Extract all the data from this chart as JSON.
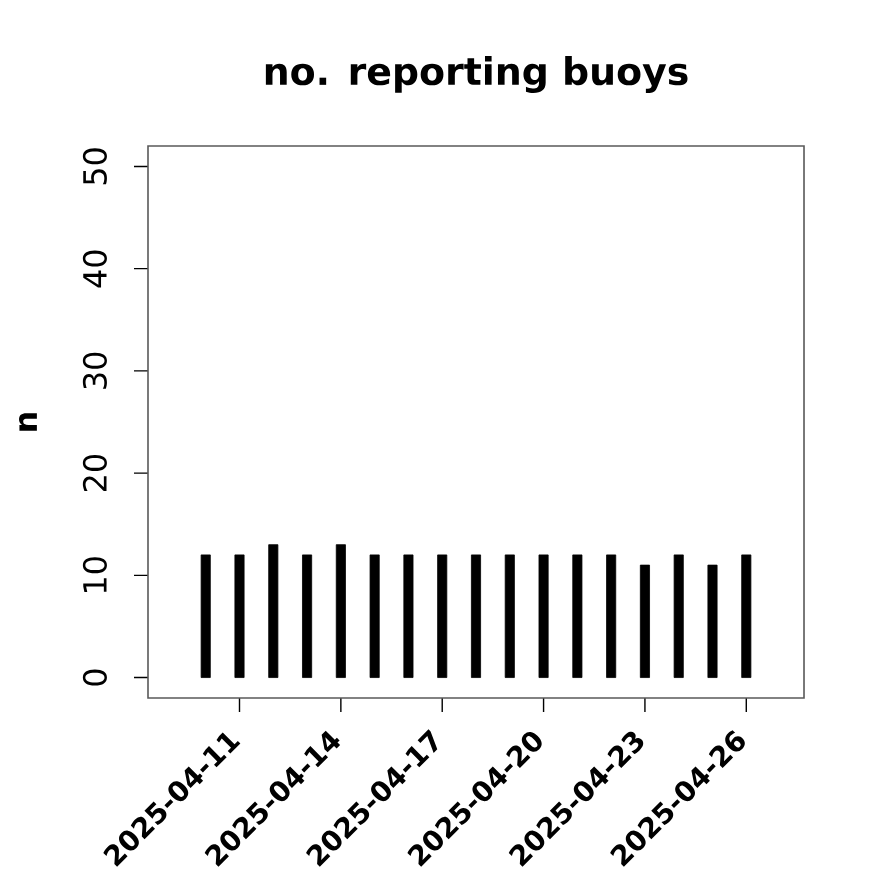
{
  "chart_data": {
    "type": "bar",
    "title": "no. reporting buoys",
    "ylabel": "n",
    "x": [
      "2025-04-10",
      "2025-04-11",
      "2025-04-12",
      "2025-04-13",
      "2025-04-14",
      "2025-04-15",
      "2025-04-16",
      "2025-04-17",
      "2025-04-18",
      "2025-04-19",
      "2025-04-20",
      "2025-04-21",
      "2025-04-22",
      "2025-04-23",
      "2025-04-24",
      "2025-04-25",
      "2025-04-26"
    ],
    "values": [
      12,
      12,
      13,
      12,
      13,
      12,
      12,
      12,
      12,
      12,
      12,
      12,
      12,
      11,
      12,
      11,
      12
    ],
    "color": "#000000",
    "xlim": [
      "2025-04-08T07:00",
      "2025-04-27T17:00"
    ],
    "xticks": [
      {
        "value": "2025-04-11",
        "label": "2025-04-11"
      },
      {
        "value": "2025-04-14",
        "label": "2025-04-14"
      },
      {
        "value": "2025-04-17",
        "label": "2025-04-17"
      },
      {
        "value": "2025-04-20",
        "label": "2025-04-20"
      },
      {
        "value": "2025-04-23",
        "label": "2025-04-23"
      },
      {
        "value": "2025-04-26",
        "label": "2025-04-26"
      }
    ],
    "ylim": [
      -2,
      52
    ],
    "yticks": [
      0,
      10,
      20,
      30,
      40,
      50
    ]
  }
}
